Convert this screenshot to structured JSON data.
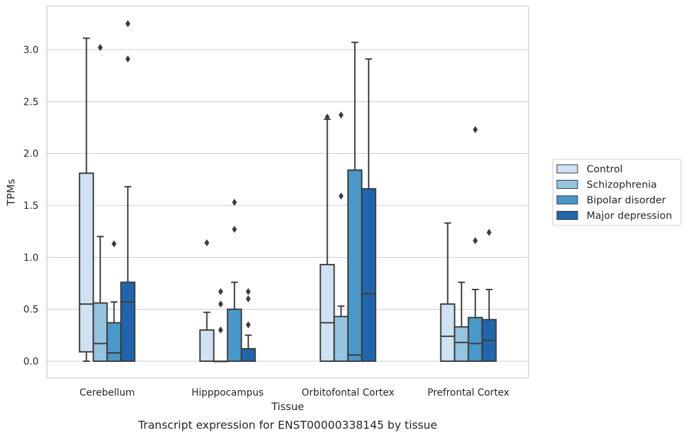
{
  "chart_data": {
    "type": "box",
    "caption": "Transcript expression for ENST00000338145 by tissue",
    "xlabel": "Tissue",
    "ylabel": "TPMs",
    "ylim": [
      -0.16,
      3.43
    ],
    "yticks": [
      0.0,
      0.5,
      1.0,
      1.5,
      2.0,
      2.5,
      3.0
    ],
    "ytick_labels": [
      "0.0",
      "0.5",
      "1.0",
      "1.5",
      "2.0",
      "2.5",
      "3.0"
    ],
    "grid": "horizontal",
    "legend_position": "right",
    "categories": [
      "Cerebellum",
      "Hipppocampus",
      "Orbitofontal Cortex",
      "Prefrontal Cortex"
    ],
    "series": [
      {
        "name": "Control",
        "color": "#d0e1f2",
        "boxes": [
          {
            "whisker_low": 0.0,
            "q1": 0.09,
            "median": 0.55,
            "q3": 1.81,
            "whisker_high": 3.11,
            "outliers": []
          },
          {
            "whisker_low": 0.0,
            "q1": 0.0,
            "median": 0.0,
            "q3": 0.3,
            "whisker_high": 0.47,
            "outliers": [
              1.14
            ]
          },
          {
            "whisker_low": 0.0,
            "q1": 0.0,
            "median": 0.37,
            "q3": 0.93,
            "whisker_high": 2.33,
            "outliers": [
              2.35
            ]
          },
          {
            "whisker_low": 0.0,
            "q1": 0.0,
            "median": 0.24,
            "q3": 0.55,
            "whisker_high": 1.33,
            "outliers": []
          }
        ]
      },
      {
        "name": "Schizophrenia",
        "color": "#94c4df",
        "boxes": [
          {
            "whisker_low": 0.0,
            "q1": 0.0,
            "median": 0.17,
            "q3": 0.56,
            "whisker_high": 1.2,
            "outliers": [
              3.02
            ]
          },
          {
            "whisker_low": 0.0,
            "q1": 0.0,
            "median": 0.0,
            "q3": 0.0,
            "whisker_high": 0.0,
            "outliers": [
              0.3,
              0.55,
              0.67
            ]
          },
          {
            "whisker_low": 0.0,
            "q1": 0.0,
            "median": 0.0,
            "q3": 0.43,
            "whisker_high": 0.53,
            "outliers": [
              1.59,
              2.37
            ]
          },
          {
            "whisker_low": 0.0,
            "q1": 0.0,
            "median": 0.18,
            "q3": 0.33,
            "whisker_high": 0.76,
            "outliers": []
          }
        ]
      },
      {
        "name": "Bipolar disorder",
        "color": "#4a98c9",
        "boxes": [
          {
            "whisker_low": 0.0,
            "q1": 0.0,
            "median": 0.08,
            "q3": 0.37,
            "whisker_high": 0.57,
            "outliers": [
              1.13
            ]
          },
          {
            "whisker_low": 0.0,
            "q1": 0.0,
            "median": 0.0,
            "q3": 0.5,
            "whisker_high": 0.76,
            "outliers": [
              1.27,
              1.53
            ]
          },
          {
            "whisker_low": 0.0,
            "q1": 0.0,
            "median": 0.06,
            "q3": 1.84,
            "whisker_high": 3.07,
            "outliers": []
          },
          {
            "whisker_low": 0.0,
            "q1": 0.0,
            "median": 0.17,
            "q3": 0.42,
            "whisker_high": 0.69,
            "outliers": [
              1.16,
              2.23
            ]
          }
        ]
      },
      {
        "name": "Major depression",
        "color": "#2166ac",
        "boxes": [
          {
            "whisker_low": 0.0,
            "q1": 0.0,
            "median": 0.57,
            "q3": 0.76,
            "whisker_high": 1.68,
            "outliers": [
              2.91,
              3.25
            ]
          },
          {
            "whisker_low": 0.0,
            "q1": 0.0,
            "median": 0.0,
            "q3": 0.12,
            "whisker_high": 0.25,
            "outliers": [
              0.35,
              0.6,
              0.67
            ]
          },
          {
            "whisker_low": 0.0,
            "q1": 0.0,
            "median": 0.65,
            "q3": 1.66,
            "whisker_high": 2.91,
            "outliers": []
          },
          {
            "whisker_low": 0.0,
            "q1": 0.0,
            "median": 0.2,
            "q3": 0.4,
            "whisker_high": 0.69,
            "outliers": [
              1.24
            ]
          }
        ]
      }
    ]
  }
}
